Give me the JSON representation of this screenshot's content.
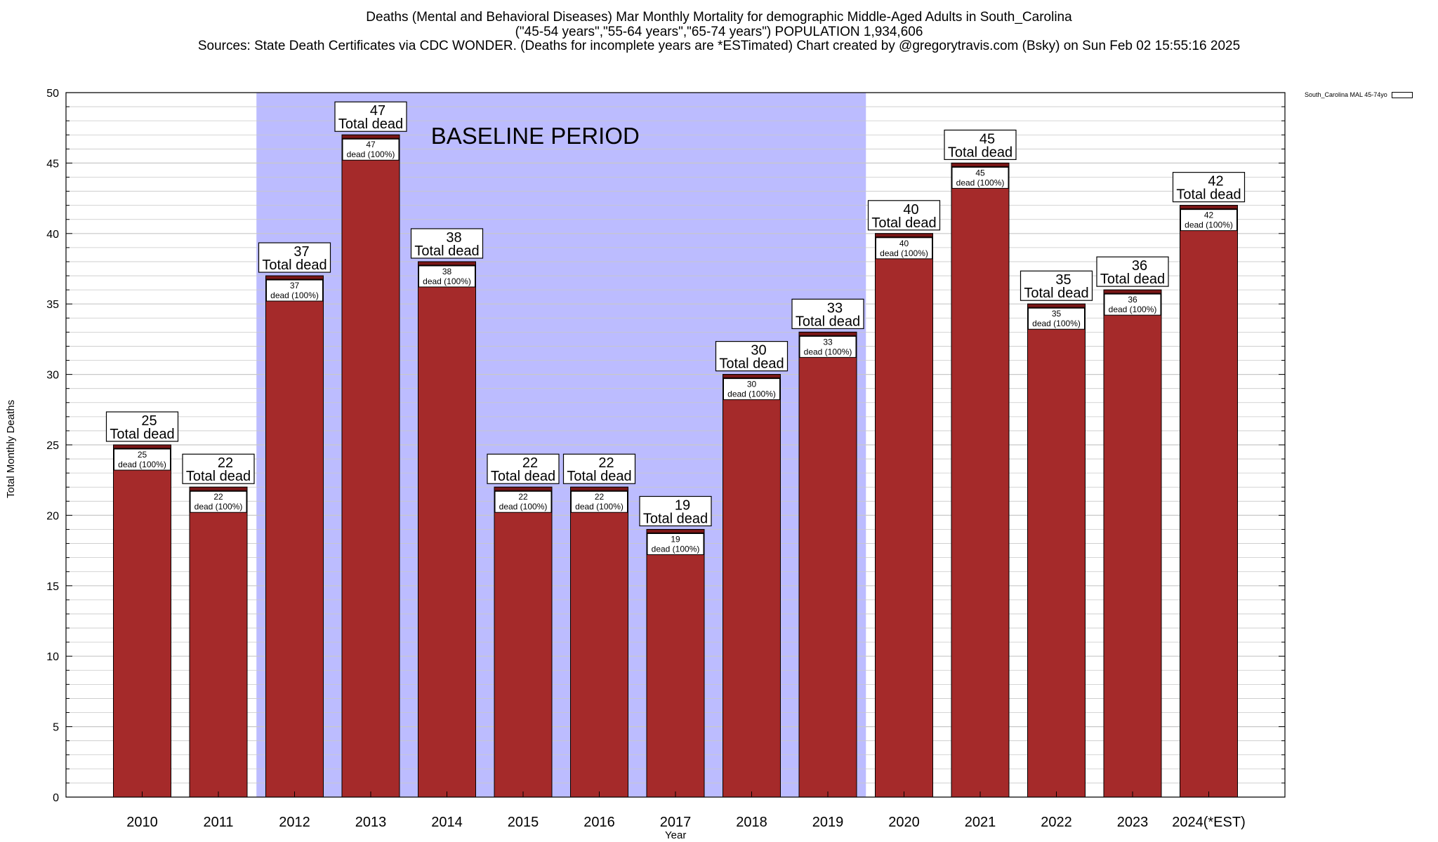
{
  "title": {
    "line1": "Deaths (Mental and Behavioral Diseases) Mar Monthly Mortality for demographic Middle-Aged Adults in South_Carolina",
    "line2": "(\"45-54 years\",\"55-64 years\",\"65-74 years\") POPULATION 1,934,606",
    "line3": "Sources: State Death Certificates via CDC WONDER. (Deaths for incomplete years are *ESTimated)                Chart created by @gregorytravis.com (Bsky) on Sun Feb 02 15:55:16 2025"
  },
  "chart_data": {
    "type": "bar",
    "xlabel": "Year",
    "ylabel": "Total Monthly Deaths",
    "ylim": [
      0,
      50
    ],
    "yticks": [
      0,
      5,
      10,
      15,
      20,
      25,
      30,
      35,
      40,
      45,
      50
    ],
    "grid": true,
    "legend_position": "top-right",
    "categories": [
      "2010",
      "2011",
      "2012",
      "2013",
      "2014",
      "2015",
      "2016",
      "2017",
      "2018",
      "2019",
      "2020",
      "2021",
      "2022",
      "2023",
      "2024(*EST)"
    ],
    "series": [
      {
        "name": "South_Carolina MAL 45-74yo",
        "values": [
          25,
          22,
          37,
          47,
          38,
          22,
          22,
          19,
          30,
          33,
          40,
          45,
          35,
          36,
          42
        ]
      }
    ],
    "top_label_suffix": "Total dead",
    "inner_label_line1": [
      "25",
      "22",
      "37",
      "47",
      "38",
      "22",
      "22",
      "19",
      "30",
      "33",
      "40",
      "45",
      "35",
      "36",
      "42"
    ],
    "inner_label_line2": "dead (100%)",
    "baseline_period": {
      "label": "BASELINE PERIOD",
      "start_category": "2012",
      "end_category": "2019"
    }
  },
  "colors": {
    "bar": "#a52a2a",
    "bar_cap": "#7a1717",
    "baseline_shade": "#bcbcff",
    "gridline": "#c8c8c8",
    "axis": "#000000"
  }
}
